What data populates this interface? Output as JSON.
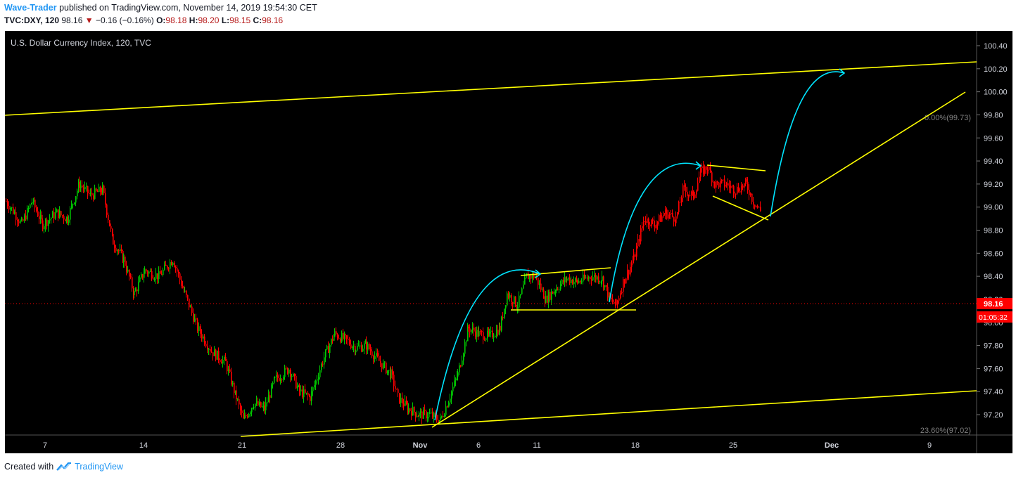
{
  "header": {
    "author": "Wave-Trader",
    "published_text": "published on TradingView.com, November 14, 2019 19:54:30 CET",
    "symbol": "TVC:DXY, 120",
    "last": "98.16",
    "change": "−0.16 (−0.16%)",
    "o_label": "O:",
    "o": "98.18",
    "h_label": "H:",
    "h": "98.20",
    "l_label": "L:",
    "l": "98.15",
    "c_label": "C:",
    "c": "98.16"
  },
  "footer": {
    "created_with": "Created with",
    "brand": "TradingView"
  },
  "colors": {
    "background": "#000000",
    "up": "#00c800",
    "down": "#ff0000",
    "trendline": "#ffff00",
    "arrow": "#00e5ff",
    "price_label": "#ff0000"
  },
  "chart_data": {
    "type": "candlestick",
    "title": "U.S. Dollar Currency Index, 120, TVC",
    "y_ticks": [
      "100.40",
      "100.20",
      "100.00",
      "99.80",
      "99.60",
      "99.40",
      "99.20",
      "99.00",
      "98.80",
      "98.60",
      "98.40",
      "98.20",
      "98.00",
      "97.80",
      "97.60",
      "97.40",
      "97.20"
    ],
    "x_ticks": [
      "7",
      "14",
      "21",
      "28",
      "Nov",
      "6",
      "11",
      "18",
      "25",
      "Dec",
      "9"
    ],
    "ylim": [
      97.02,
      100.47
    ],
    "last_price": "98.16",
    "countdown": "01:05:32",
    "fib_levels": [
      {
        "label": "0.00%(99.73)",
        "value": 99.73
      },
      {
        "label": "23.60%(97.02)",
        "value": 97.02
      }
    ],
    "price_path": {
      "description_points": [
        [
          "Oct 3",
          99.05
        ],
        [
          "Oct 4",
          98.85
        ],
        [
          "Oct 6",
          99.0
        ],
        [
          "Oct 7",
          98.9
        ],
        [
          "Oct 8",
          99.05
        ],
        [
          "Oct 9",
          98.95
        ],
        [
          "Oct 10",
          99.2
        ],
        [
          "Oct 11",
          99.1
        ],
        [
          "Oct 12",
          98.75
        ],
        [
          "Oct 13",
          98.4
        ],
        [
          "Oct 14",
          98.3
        ],
        [
          "Oct 15",
          98.45
        ],
        [
          "Oct 16",
          98.35
        ],
        [
          "Oct 17",
          98.25
        ],
        [
          "Oct 18",
          97.95
        ],
        [
          "Oct 19",
          97.65
        ],
        [
          "Oct 20",
          97.4
        ],
        [
          "Oct 21",
          97.2
        ],
        [
          "Oct 22",
          97.3
        ],
        [
          "Oct 23",
          97.35
        ],
        [
          "Oct 24",
          97.55
        ],
        [
          "Oct 25",
          97.6
        ],
        [
          "Oct 26",
          97.55
        ],
        [
          "Oct 27",
          97.8
        ],
        [
          "Oct 28",
          97.85
        ],
        [
          "Oct 29",
          97.75
        ],
        [
          "Oct 30",
          97.7
        ],
        [
          "Oct 31",
          97.4
        ],
        [
          "Nov 1",
          97.25
        ],
        [
          "Nov 2",
          97.2
        ],
        [
          "Nov 3",
          97.35
        ],
        [
          "Nov 4",
          97.6
        ],
        [
          "Nov 5",
          97.95
        ],
        [
          "Nov 6",
          97.85
        ],
        [
          "Nov 7",
          97.95
        ],
        [
          "Nov 8",
          98.25
        ],
        [
          "Nov 9",
          98.35
        ],
        [
          "Nov 10",
          98.25
        ],
        [
          "Nov 11",
          98.3
        ],
        [
          "Nov 12",
          98.35
        ],
        [
          "Nov 13",
          98.4
        ],
        [
          "Nov 14",
          98.16
        ],
        [
          "Nov 15",
          98.4
        ],
        [
          "Nov 16",
          98.55
        ],
        [
          "Nov 17",
          98.9
        ],
        [
          "Nov 18",
          98.85
        ],
        [
          "Nov 19",
          98.95
        ],
        [
          "Nov 20",
          99.1
        ],
        [
          "Nov 21",
          99.25
        ],
        [
          "Nov 22",
          99.3
        ],
        [
          "Nov 23",
          99.2
        ],
        [
          "Nov 24",
          99.15
        ],
        [
          "Nov 25",
          99.05
        ],
        [
          "Nov 26",
          98.95
        ]
      ]
    }
  }
}
